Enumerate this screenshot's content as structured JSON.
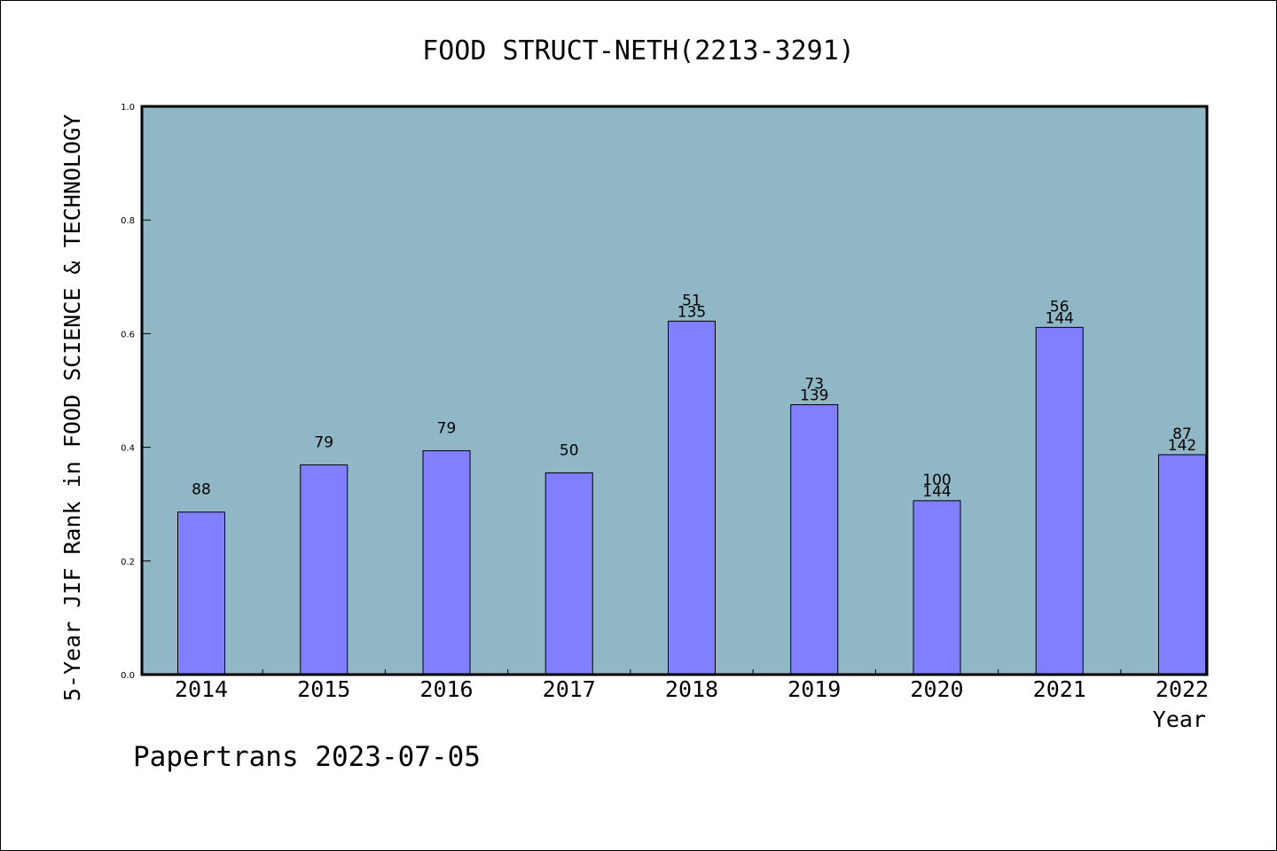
{
  "chart_data": {
    "type": "bar",
    "title": "FOOD STRUCT-NETH(2213-3291)",
    "xlabel": "Year",
    "ylabel": "5-Year JIF Rank in FOOD SCIENCE & TECHNOLOGY",
    "categories": [
      "2014",
      "2015",
      "2016",
      "2017",
      "2018",
      "2019",
      "2020",
      "2021",
      "2022"
    ],
    "values": [
      0.286,
      0.369,
      0.394,
      0.355,
      0.622,
      0.475,
      0.306,
      0.611,
      0.387
    ],
    "bar_labels": [
      [
        "88"
      ],
      [
        "79"
      ],
      [
        "79"
      ],
      [
        "50"
      ],
      [
        "51",
        "135"
      ],
      [
        "73",
        "139"
      ],
      [
        "100",
        "144"
      ],
      [
        "56",
        "144"
      ],
      [
        "87",
        "142"
      ]
    ],
    "ylim": [
      0,
      1.0
    ],
    "yticks": [
      "0.0",
      "0.2",
      "0.4",
      "0.6",
      "0.8",
      "1.0"
    ],
    "grid": false,
    "colors": {
      "plot_background": "#8fb7c5",
      "bar_fill": "#8080ff",
      "bar_stroke": "#000000"
    }
  },
  "footer": {
    "watermark": "Papertrans 2023-07-05"
  }
}
